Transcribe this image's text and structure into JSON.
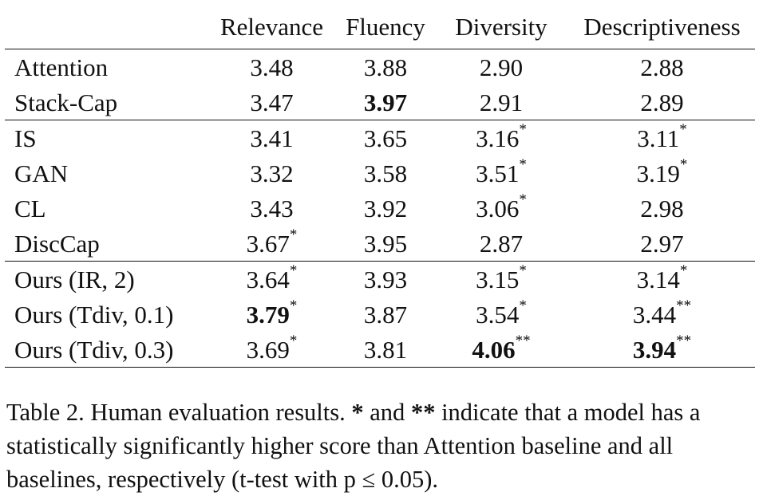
{
  "table": {
    "header": [
      "",
      "Relevance",
      "Fluency",
      "Diversity",
      "Descriptiveness"
    ],
    "groups": [
      [
        {
          "model": "Attention",
          "cells": [
            {
              "v": "3.48",
              "b": false,
              "s": ""
            },
            {
              "v": "3.88",
              "b": false,
              "s": ""
            },
            {
              "v": "2.90",
              "b": false,
              "s": ""
            },
            {
              "v": "2.88",
              "b": false,
              "s": ""
            }
          ]
        },
        {
          "model": "Stack-Cap",
          "cells": [
            {
              "v": "3.47",
              "b": false,
              "s": ""
            },
            {
              "v": "3.97",
              "b": true,
              "s": ""
            },
            {
              "v": "2.91",
              "b": false,
              "s": ""
            },
            {
              "v": "2.89",
              "b": false,
              "s": ""
            }
          ]
        }
      ],
      [
        {
          "model": "IS",
          "cells": [
            {
              "v": "3.41",
              "b": false,
              "s": ""
            },
            {
              "v": "3.65",
              "b": false,
              "s": ""
            },
            {
              "v": "3.16",
              "b": false,
              "s": "*"
            },
            {
              "v": "3.11",
              "b": false,
              "s": "*"
            }
          ]
        },
        {
          "model": "GAN",
          "cells": [
            {
              "v": "3.32",
              "b": false,
              "s": ""
            },
            {
              "v": "3.58",
              "b": false,
              "s": ""
            },
            {
              "v": "3.51",
              "b": false,
              "s": "*"
            },
            {
              "v": "3.19",
              "b": false,
              "s": "*"
            }
          ]
        },
        {
          "model": "CL",
          "cells": [
            {
              "v": "3.43",
              "b": false,
              "s": ""
            },
            {
              "v": "3.92",
              "b": false,
              "s": ""
            },
            {
              "v": "3.06",
              "b": false,
              "s": "*"
            },
            {
              "v": "2.98",
              "b": false,
              "s": ""
            }
          ]
        },
        {
          "model": "DiscCap",
          "cells": [
            {
              "v": "3.67",
              "b": false,
              "s": "*"
            },
            {
              "v": "3.95",
              "b": false,
              "s": ""
            },
            {
              "v": "2.87",
              "b": false,
              "s": ""
            },
            {
              "v": "2.97",
              "b": false,
              "s": ""
            }
          ]
        }
      ],
      [
        {
          "model": "Ours (IR, 2)",
          "cells": [
            {
              "v": "3.64",
              "b": false,
              "s": "*"
            },
            {
              "v": "3.93",
              "b": false,
              "s": ""
            },
            {
              "v": "3.15",
              "b": false,
              "s": "*"
            },
            {
              "v": "3.14",
              "b": false,
              "s": "*"
            }
          ]
        },
        {
          "model": "Ours (Tdiv, 0.1)",
          "cells": [
            {
              "v": "3.79",
              "b": true,
              "s": "*"
            },
            {
              "v": "3.87",
              "b": false,
              "s": ""
            },
            {
              "v": "3.54",
              "b": false,
              "s": "*"
            },
            {
              "v": "3.44",
              "b": false,
              "s": "**"
            }
          ]
        },
        {
          "model": "Ours (Tdiv, 0.3)",
          "cells": [
            {
              "v": "3.69",
              "b": false,
              "s": "*"
            },
            {
              "v": "3.81",
              "b": false,
              "s": ""
            },
            {
              "v": "4.06",
              "b": true,
              "s": "**"
            },
            {
              "v": "3.94",
              "b": true,
              "s": "**"
            }
          ]
        }
      ]
    ]
  },
  "caption": {
    "part1": "Table 2. Human evaluation results. ",
    "star1": "*",
    "part2": " and ",
    "star2": "**",
    "part3": " indicate that a model has a statistically significantly higher score than Attention baseline and all baselines, respectively (t-test with p ≤ 0.05)."
  }
}
